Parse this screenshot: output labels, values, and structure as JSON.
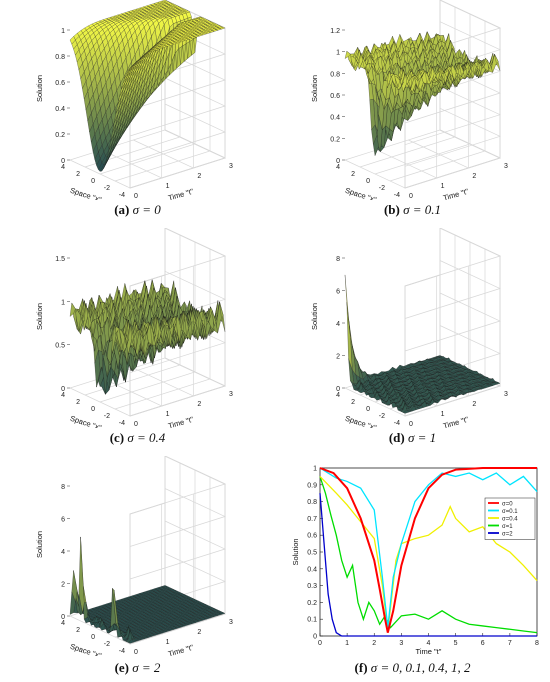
{
  "panels": [
    {
      "id": "a",
      "letter": "(a)",
      "caption": "σ = 0"
    },
    {
      "id": "b",
      "letter": "(b)",
      "caption": "σ = 0.1"
    },
    {
      "id": "c",
      "letter": "(c)",
      "caption": "σ = 0.4"
    },
    {
      "id": "d",
      "letter": "(d)",
      "caption": "σ = 1"
    },
    {
      "id": "e",
      "letter": "(e)",
      "caption": "σ = 2"
    },
    {
      "id": "f",
      "letter": "(f)",
      "caption": "σ = 0, 0.1, 0.4, 1, 2"
    }
  ],
  "surface_axes": {
    "zlabel": "Solution",
    "xlabel": "Space \"x\"",
    "ylabel": "Time \"t\""
  },
  "chart_data": [
    {
      "type": "surface",
      "sigma": 0,
      "x_ticks": [
        "4",
        "2",
        "0",
        "-2",
        "-4"
      ],
      "t_ticks": [
        "0",
        "1",
        "2",
        "3"
      ],
      "z_ticks": [
        "0",
        "0.2",
        "0.4",
        "0.6",
        "0.8",
        "1"
      ],
      "zlim": [
        0,
        1
      ]
    },
    {
      "type": "surface",
      "sigma": 0.1,
      "x_ticks": [
        "4",
        "2",
        "0",
        "-2",
        "-4"
      ],
      "t_ticks": [
        "0",
        "1",
        "2",
        "3"
      ],
      "z_ticks": [
        "0",
        "0.2",
        "0.4",
        "0.6",
        "0.8",
        "1",
        "1.2"
      ],
      "zlim": [
        0,
        1.2
      ]
    },
    {
      "type": "surface",
      "sigma": 0.4,
      "x_ticks": [
        "4",
        "2",
        "0",
        "-2",
        "-4"
      ],
      "t_ticks": [
        "0",
        "1",
        "2",
        "3"
      ],
      "z_ticks": [
        "0",
        "0.5",
        "1",
        "1.5"
      ],
      "zlim": [
        0,
        1.5
      ]
    },
    {
      "type": "surface",
      "sigma": 1,
      "x_ticks": [
        "4",
        "2",
        "0",
        "-2",
        "-4"
      ],
      "t_ticks": [
        "0",
        "1",
        "2",
        "3"
      ],
      "z_ticks": [
        "0",
        "2",
        "4",
        "6",
        "8"
      ],
      "zlim": [
        0,
        8
      ]
    },
    {
      "type": "surface",
      "sigma": 2,
      "x_ticks": [
        "4",
        "2",
        "0",
        "-2",
        "-4"
      ],
      "t_ticks": [
        "0",
        "1",
        "2",
        "3"
      ],
      "z_ticks": [
        "0",
        "2",
        "4",
        "6",
        "8"
      ],
      "zlim": [
        0,
        8
      ]
    },
    {
      "type": "line",
      "xlabel": "Time \"t\"",
      "ylabel": "Solution",
      "xlim": [
        0,
        8
      ],
      "ylim": [
        0,
        1
      ],
      "x_ticks": [
        0,
        1,
        2,
        3,
        4,
        5,
        6,
        7,
        8
      ],
      "y_ticks": [
        0,
        0.1,
        0.2,
        0.3,
        0.4,
        0.5,
        0.6,
        0.7,
        0.8,
        0.9,
        1
      ],
      "legend": "top-right",
      "series": [
        {
          "name": "σ=0",
          "color": "#ff0000",
          "x": [
            0,
            0.5,
            1,
            1.5,
            2,
            2.2,
            2.4,
            2.5,
            2.7,
            3,
            3.5,
            4,
            4.5,
            5,
            6,
            7,
            8
          ],
          "y": [
            1,
            0.97,
            0.88,
            0.7,
            0.45,
            0.28,
            0.1,
            0.02,
            0.15,
            0.42,
            0.7,
            0.88,
            0.96,
            0.99,
            1,
            1,
            1
          ]
        },
        {
          "name": "σ=0.1",
          "color": "#00e5ff",
          "x": [
            0,
            0.3,
            0.6,
            1,
            1.5,
            2,
            2.3,
            2.5,
            2.7,
            3,
            3.5,
            4,
            4.5,
            5,
            5.5,
            6,
            6.5,
            7,
            7.5,
            8
          ],
          "y": [
            1,
            0.97,
            0.94,
            0.92,
            0.88,
            0.75,
            0.35,
            0.05,
            0.35,
            0.55,
            0.8,
            0.9,
            0.97,
            0.95,
            0.97,
            0.93,
            0.97,
            0.9,
            0.95,
            0.86
          ]
        },
        {
          "name": "σ=0.4",
          "color": "#f0f000",
          "x": [
            0,
            0.3,
            0.6,
            1,
            1.5,
            2,
            2.3,
            2.5,
            2.8,
            3,
            3.5,
            4,
            4.5,
            4.8,
            5,
            5.5,
            6,
            6.5,
            7,
            7.5,
            8
          ],
          "y": [
            0.95,
            0.9,
            0.85,
            0.78,
            0.68,
            0.58,
            0.3,
            0.03,
            0.45,
            0.55,
            0.58,
            0.6,
            0.66,
            0.77,
            0.7,
            0.62,
            0.65,
            0.55,
            0.5,
            0.42,
            0.33
          ]
        },
        {
          "name": "σ=1",
          "color": "#00dd00",
          "x": [
            0,
            0.2,
            0.4,
            0.6,
            0.8,
            1,
            1.2,
            1.4,
            1.6,
            1.8,
            2,
            2.2,
            2.4,
            2.6,
            3,
            3.5,
            4,
            4.5,
            5,
            5.5,
            6,
            6.5,
            7,
            7.5,
            8
          ],
          "y": [
            0.95,
            0.85,
            0.72,
            0.6,
            0.45,
            0.35,
            0.42,
            0.2,
            0.1,
            0.2,
            0.15,
            0.07,
            0.12,
            0.05,
            0.12,
            0.13,
            0.1,
            0.15,
            0.1,
            0.07,
            0.06,
            0.05,
            0.04,
            0.03,
            0.02
          ]
        },
        {
          "name": "σ=2",
          "color": "#0000cc",
          "x": [
            0,
            0.15,
            0.3,
            0.45,
            0.6,
            0.8,
            1,
            2,
            3,
            4,
            5,
            6,
            7,
            8
          ],
          "y": [
            0.85,
            0.55,
            0.25,
            0.1,
            0.02,
            0.0,
            0,
            0,
            0,
            0,
            0,
            0,
            0,
            0
          ]
        }
      ]
    }
  ]
}
